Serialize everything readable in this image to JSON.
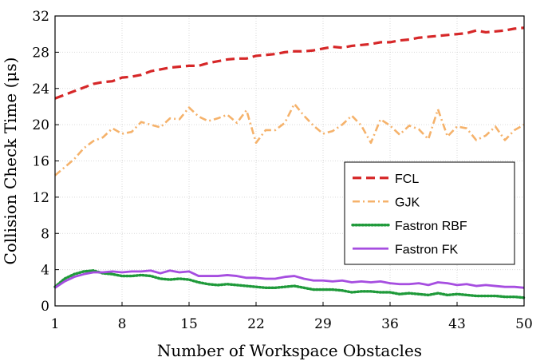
{
  "chart_data": {
    "type": "line",
    "xlabel": "Number of Workspace Obstacles",
    "ylabel": "Collision Check Time (μs)",
    "xlim": [
      1,
      50
    ],
    "ylim": [
      0,
      32
    ],
    "x_ticks": [
      1,
      8,
      15,
      22,
      29,
      36,
      43,
      50
    ],
    "y_ticks": [
      0,
      4,
      8,
      12,
      16,
      20,
      24,
      28,
      32
    ],
    "grid": true,
    "legend_position": "center-right",
    "x": [
      1,
      2,
      3,
      4,
      5,
      6,
      7,
      8,
      9,
      10,
      11,
      12,
      13,
      14,
      15,
      16,
      17,
      18,
      19,
      20,
      21,
      22,
      23,
      24,
      25,
      26,
      27,
      28,
      29,
      30,
      31,
      32,
      33,
      34,
      35,
      36,
      37,
      38,
      39,
      40,
      41,
      42,
      43,
      44,
      45,
      46,
      47,
      48,
      49,
      50
    ],
    "series": [
      {
        "name": "FCL",
        "color": "#d62728",
        "style": "dashed",
        "values": [
          22.9,
          23.3,
          23.7,
          24.1,
          24.5,
          24.7,
          24.8,
          25.2,
          25.3,
          25.5,
          25.9,
          26.1,
          26.3,
          26.4,
          26.5,
          26.5,
          26.8,
          27.0,
          27.2,
          27.3,
          27.3,
          27.6,
          27.7,
          27.8,
          28.0,
          28.1,
          28.1,
          28.2,
          28.4,
          28.6,
          28.5,
          28.7,
          28.8,
          28.9,
          29.1,
          29.1,
          29.3,
          29.4,
          29.6,
          29.7,
          29.8,
          29.9,
          30.0,
          30.1,
          30.4,
          30.2,
          30.3,
          30.4,
          30.6,
          30.7
        ]
      },
      {
        "name": "GJK",
        "color": "#f5b26b",
        "style": "dash-dot",
        "values": [
          14.4,
          15.3,
          16.2,
          17.4,
          18.2,
          18.6,
          19.6,
          19.0,
          19.2,
          20.3,
          20.0,
          19.7,
          20.7,
          20.6,
          21.9,
          20.9,
          20.4,
          20.7,
          21.1,
          20.2,
          21.6,
          18.0,
          19.4,
          19.4,
          20.2,
          22.3,
          21.0,
          19.9,
          19.0,
          19.3,
          20.0,
          21.0,
          19.9,
          18.0,
          20.6,
          19.9,
          18.9,
          19.9,
          19.5,
          18.4,
          21.7,
          18.7,
          19.8,
          19.6,
          18.3,
          18.8,
          19.8,
          18.3,
          19.4,
          20.0
        ]
      },
      {
        "name": "Fastron RBF",
        "color": "#1f9a3a",
        "style": "dotted",
        "values": [
          2.1,
          3.0,
          3.5,
          3.8,
          3.9,
          3.6,
          3.5,
          3.3,
          3.3,
          3.4,
          3.3,
          3.0,
          2.9,
          3.0,
          2.9,
          2.6,
          2.4,
          2.3,
          2.4,
          2.3,
          2.2,
          2.1,
          2.0,
          2.0,
          2.1,
          2.2,
          2.0,
          1.8,
          1.8,
          1.8,
          1.7,
          1.5,
          1.6,
          1.6,
          1.5,
          1.5,
          1.3,
          1.4,
          1.3,
          1.2,
          1.4,
          1.2,
          1.3,
          1.2,
          1.1,
          1.1,
          1.1,
          1.0,
          1.0,
          0.9
        ]
      },
      {
        "name": "Fastron FK",
        "color": "#a64ee0",
        "style": "solid",
        "values": [
          2.0,
          2.7,
          3.2,
          3.5,
          3.7,
          3.7,
          3.8,
          3.7,
          3.8,
          3.8,
          3.9,
          3.6,
          3.9,
          3.7,
          3.8,
          3.3,
          3.3,
          3.3,
          3.4,
          3.3,
          3.1,
          3.1,
          3.0,
          3.0,
          3.2,
          3.3,
          3.0,
          2.8,
          2.8,
          2.7,
          2.8,
          2.6,
          2.7,
          2.6,
          2.7,
          2.5,
          2.4,
          2.4,
          2.5,
          2.3,
          2.6,
          2.5,
          2.3,
          2.4,
          2.2,
          2.3,
          2.2,
          2.1,
          2.1,
          2.0
        ]
      }
    ]
  }
}
